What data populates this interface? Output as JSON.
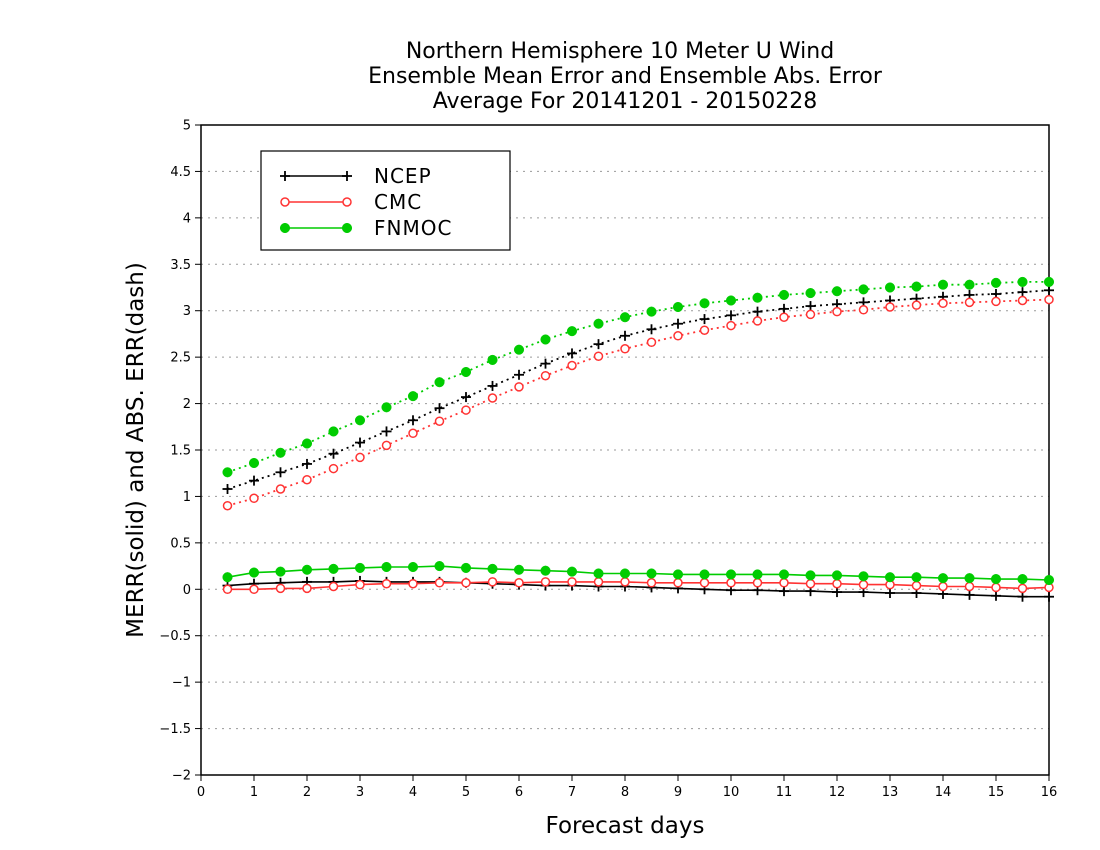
{
  "chart_data": {
    "type": "line",
    "title": [
      "Northern Hemisphere 10 Meter U Wind",
      "Ensemble Mean Error and Ensemble Abs. Error",
      "Average For 20141201 - 20150228"
    ],
    "xlabel": "Forecast days",
    "ylabel": "MERR(solid) and ABS. ERR(dash)",
    "xlim": [
      0,
      16
    ],
    "ylim": [
      -2,
      5
    ],
    "xticks": [
      "0",
      "1",
      "2",
      "3",
      "4",
      "5",
      "6",
      "7",
      "8",
      "9",
      "10",
      "11",
      "12",
      "13",
      "14",
      "15",
      "16"
    ],
    "yticks": [
      "5",
      "4.5",
      "4",
      "3.5",
      "3",
      "2.5",
      "2",
      "1.5",
      "1",
      "0.5",
      "0",
      "−0.5",
      "−1",
      "−1.5",
      "−2"
    ],
    "x": [
      0.5,
      1,
      1.5,
      2,
      2.5,
      3,
      3.5,
      4,
      4.5,
      5,
      5.5,
      6,
      6.5,
      7,
      7.5,
      8,
      8.5,
      9,
      9.5,
      10,
      10.5,
      11,
      11.5,
      12,
      12.5,
      13,
      13.5,
      14,
      14.5,
      15,
      15.5,
      16
    ],
    "grid": "horizontal dotted",
    "legend_position": "top-left",
    "series": [
      {
        "name": "NCEP",
        "color": "#000000",
        "marker": "plus",
        "abs_err": [
          1.08,
          1.17,
          1.26,
          1.35,
          1.46,
          1.58,
          1.7,
          1.82,
          1.95,
          2.07,
          2.19,
          2.31,
          2.43,
          2.54,
          2.64,
          2.73,
          2.8,
          2.86,
          2.91,
          2.95,
          2.99,
          3.02,
          3.05,
          3.07,
          3.09,
          3.11,
          3.13,
          3.15,
          3.17,
          3.18,
          3.2,
          3.22
        ],
        "mean_err": [
          0.04,
          0.06,
          0.07,
          0.08,
          0.08,
          0.09,
          0.08,
          0.08,
          0.08,
          0.07,
          0.06,
          0.05,
          0.04,
          0.04,
          0.03,
          0.03,
          0.02,
          0.01,
          0.0,
          -0.01,
          -0.01,
          -0.02,
          -0.02,
          -0.03,
          -0.03,
          -0.04,
          -0.04,
          -0.05,
          -0.06,
          -0.07,
          -0.08,
          -0.08
        ]
      },
      {
        "name": "CMC",
        "color": "#ff3333",
        "marker": "open-circle",
        "abs_err": [
          0.9,
          0.98,
          1.08,
          1.18,
          1.3,
          1.42,
          1.55,
          1.68,
          1.81,
          1.93,
          2.06,
          2.18,
          2.3,
          2.41,
          2.51,
          2.59,
          2.66,
          2.73,
          2.79,
          2.84,
          2.89,
          2.93,
          2.96,
          2.99,
          3.01,
          3.04,
          3.06,
          3.08,
          3.09,
          3.1,
          3.11,
          3.12
        ],
        "mean_err": [
          0.0,
          0.0,
          0.01,
          0.01,
          0.03,
          0.05,
          0.06,
          0.06,
          0.07,
          0.07,
          0.08,
          0.07,
          0.08,
          0.08,
          0.08,
          0.08,
          0.07,
          0.07,
          0.07,
          0.07,
          0.07,
          0.07,
          0.06,
          0.06,
          0.05,
          0.05,
          0.04,
          0.03,
          0.03,
          0.02,
          0.01,
          0.02
        ]
      },
      {
        "name": "FNMOC",
        "color": "#00cc00",
        "marker": "filled-circle",
        "abs_err": [
          1.26,
          1.36,
          1.47,
          1.57,
          1.7,
          1.82,
          1.96,
          2.08,
          2.23,
          2.34,
          2.47,
          2.58,
          2.69,
          2.78,
          2.86,
          2.93,
          2.99,
          3.04,
          3.08,
          3.11,
          3.14,
          3.17,
          3.19,
          3.21,
          3.23,
          3.25,
          3.26,
          3.28,
          3.28,
          3.3,
          3.31,
          3.31
        ],
        "mean_err": [
          0.13,
          0.18,
          0.19,
          0.21,
          0.22,
          0.23,
          0.24,
          0.24,
          0.25,
          0.23,
          0.22,
          0.21,
          0.2,
          0.19,
          0.17,
          0.17,
          0.17,
          0.16,
          0.16,
          0.16,
          0.16,
          0.16,
          0.15,
          0.15,
          0.14,
          0.13,
          0.13,
          0.12,
          0.12,
          0.11,
          0.11,
          0.1
        ]
      }
    ]
  }
}
